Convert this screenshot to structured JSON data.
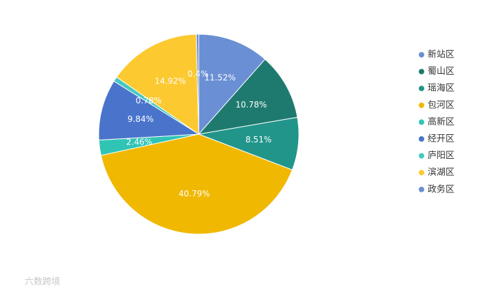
{
  "chart_data": {
    "type": "pie",
    "categories": [
      "新站区",
      "蜀山区",
      "瑶海区",
      "包河区",
      "高新区",
      "经开区",
      "庐阳区",
      "滨湖区",
      "政务区"
    ],
    "values": [
      11.52,
      10.78,
      8.51,
      40.79,
      2.46,
      9.84,
      0.78,
      14.92,
      0.4
    ],
    "value_labels": [
      "11.52%",
      "10.78%",
      "8.51%",
      "40.79%",
      "2.46%",
      "9.84%",
      "0.78%",
      "14.92%",
      "0.4%"
    ],
    "colors": [
      "#6a8fd4",
      "#1e7a6e",
      "#22958a",
      "#f0b800",
      "#30c4b5",
      "#4a74cc",
      "#45c8c0",
      "#fcc930",
      "#6a8fd4"
    ],
    "legend": "right"
  },
  "watermark": "六数跨境"
}
